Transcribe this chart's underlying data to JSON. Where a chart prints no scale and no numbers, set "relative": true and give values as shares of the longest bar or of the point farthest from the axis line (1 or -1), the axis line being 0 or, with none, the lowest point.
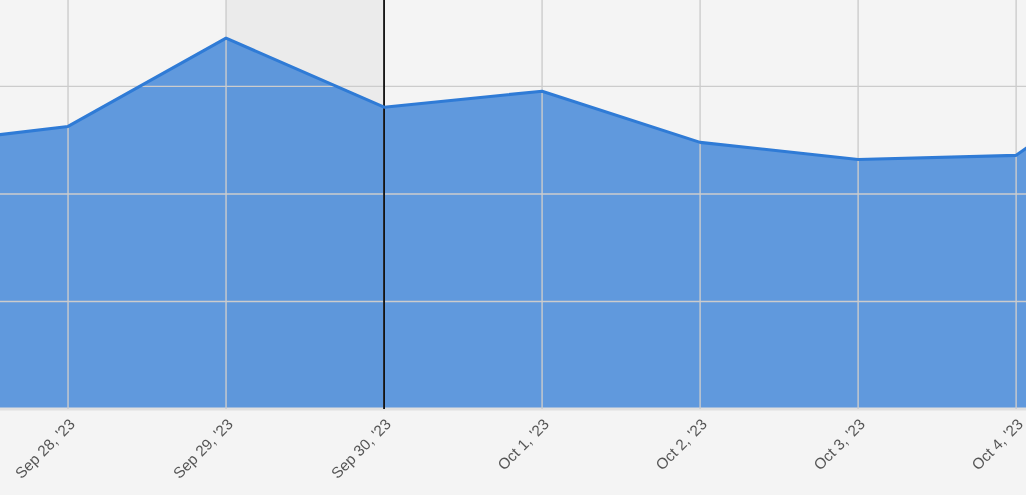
{
  "chart_data": {
    "type": "area",
    "relative": true,
    "x": [
      "2023-09-27T13:40",
      "2023-09-28",
      "2023-09-29",
      "2023-09-30",
      "2023-10-01",
      "2023-10-02",
      "2023-10-03",
      "2023-10-04",
      "2023-10-04T01:30"
    ],
    "series": [
      {
        "color": "#2f7bd6",
        "values": [
          0.74,
          0.762,
          1.0,
          0.814,
          0.857,
          0.719,
          0.673,
          0.684,
          0.703
        ]
      }
    ],
    "xlim": [
      "2023-09-27T13:40",
      "2023-10-04T01:30"
    ],
    "xticks": [
      {
        "value": "2023-09-28",
        "label": "Sep 28, '23"
      },
      {
        "value": "2023-09-29",
        "label": "Sep 29, '23"
      },
      {
        "value": "2023-09-30",
        "label": "Sep 30, '23"
      },
      {
        "value": "2023-10-01",
        "label": "Oct 1, '23"
      },
      {
        "value": "2023-10-02",
        "label": "Oct 2, '23"
      },
      {
        "value": "2023-10-03",
        "label": "Oct 3, '23"
      },
      {
        "value": "2023-10-04",
        "label": "Oct 4, '23"
      }
    ],
    "tick_labels": "x",
    "grid": true,
    "bands": [
      {
        "axis": "x",
        "from": "2023-09-29",
        "to": "2023-09-30",
        "color": "#ebebeb"
      }
    ],
    "ref_lines": [
      {
        "axis": "x",
        "value": "2023-09-30",
        "color": "#000000"
      }
    ]
  }
}
